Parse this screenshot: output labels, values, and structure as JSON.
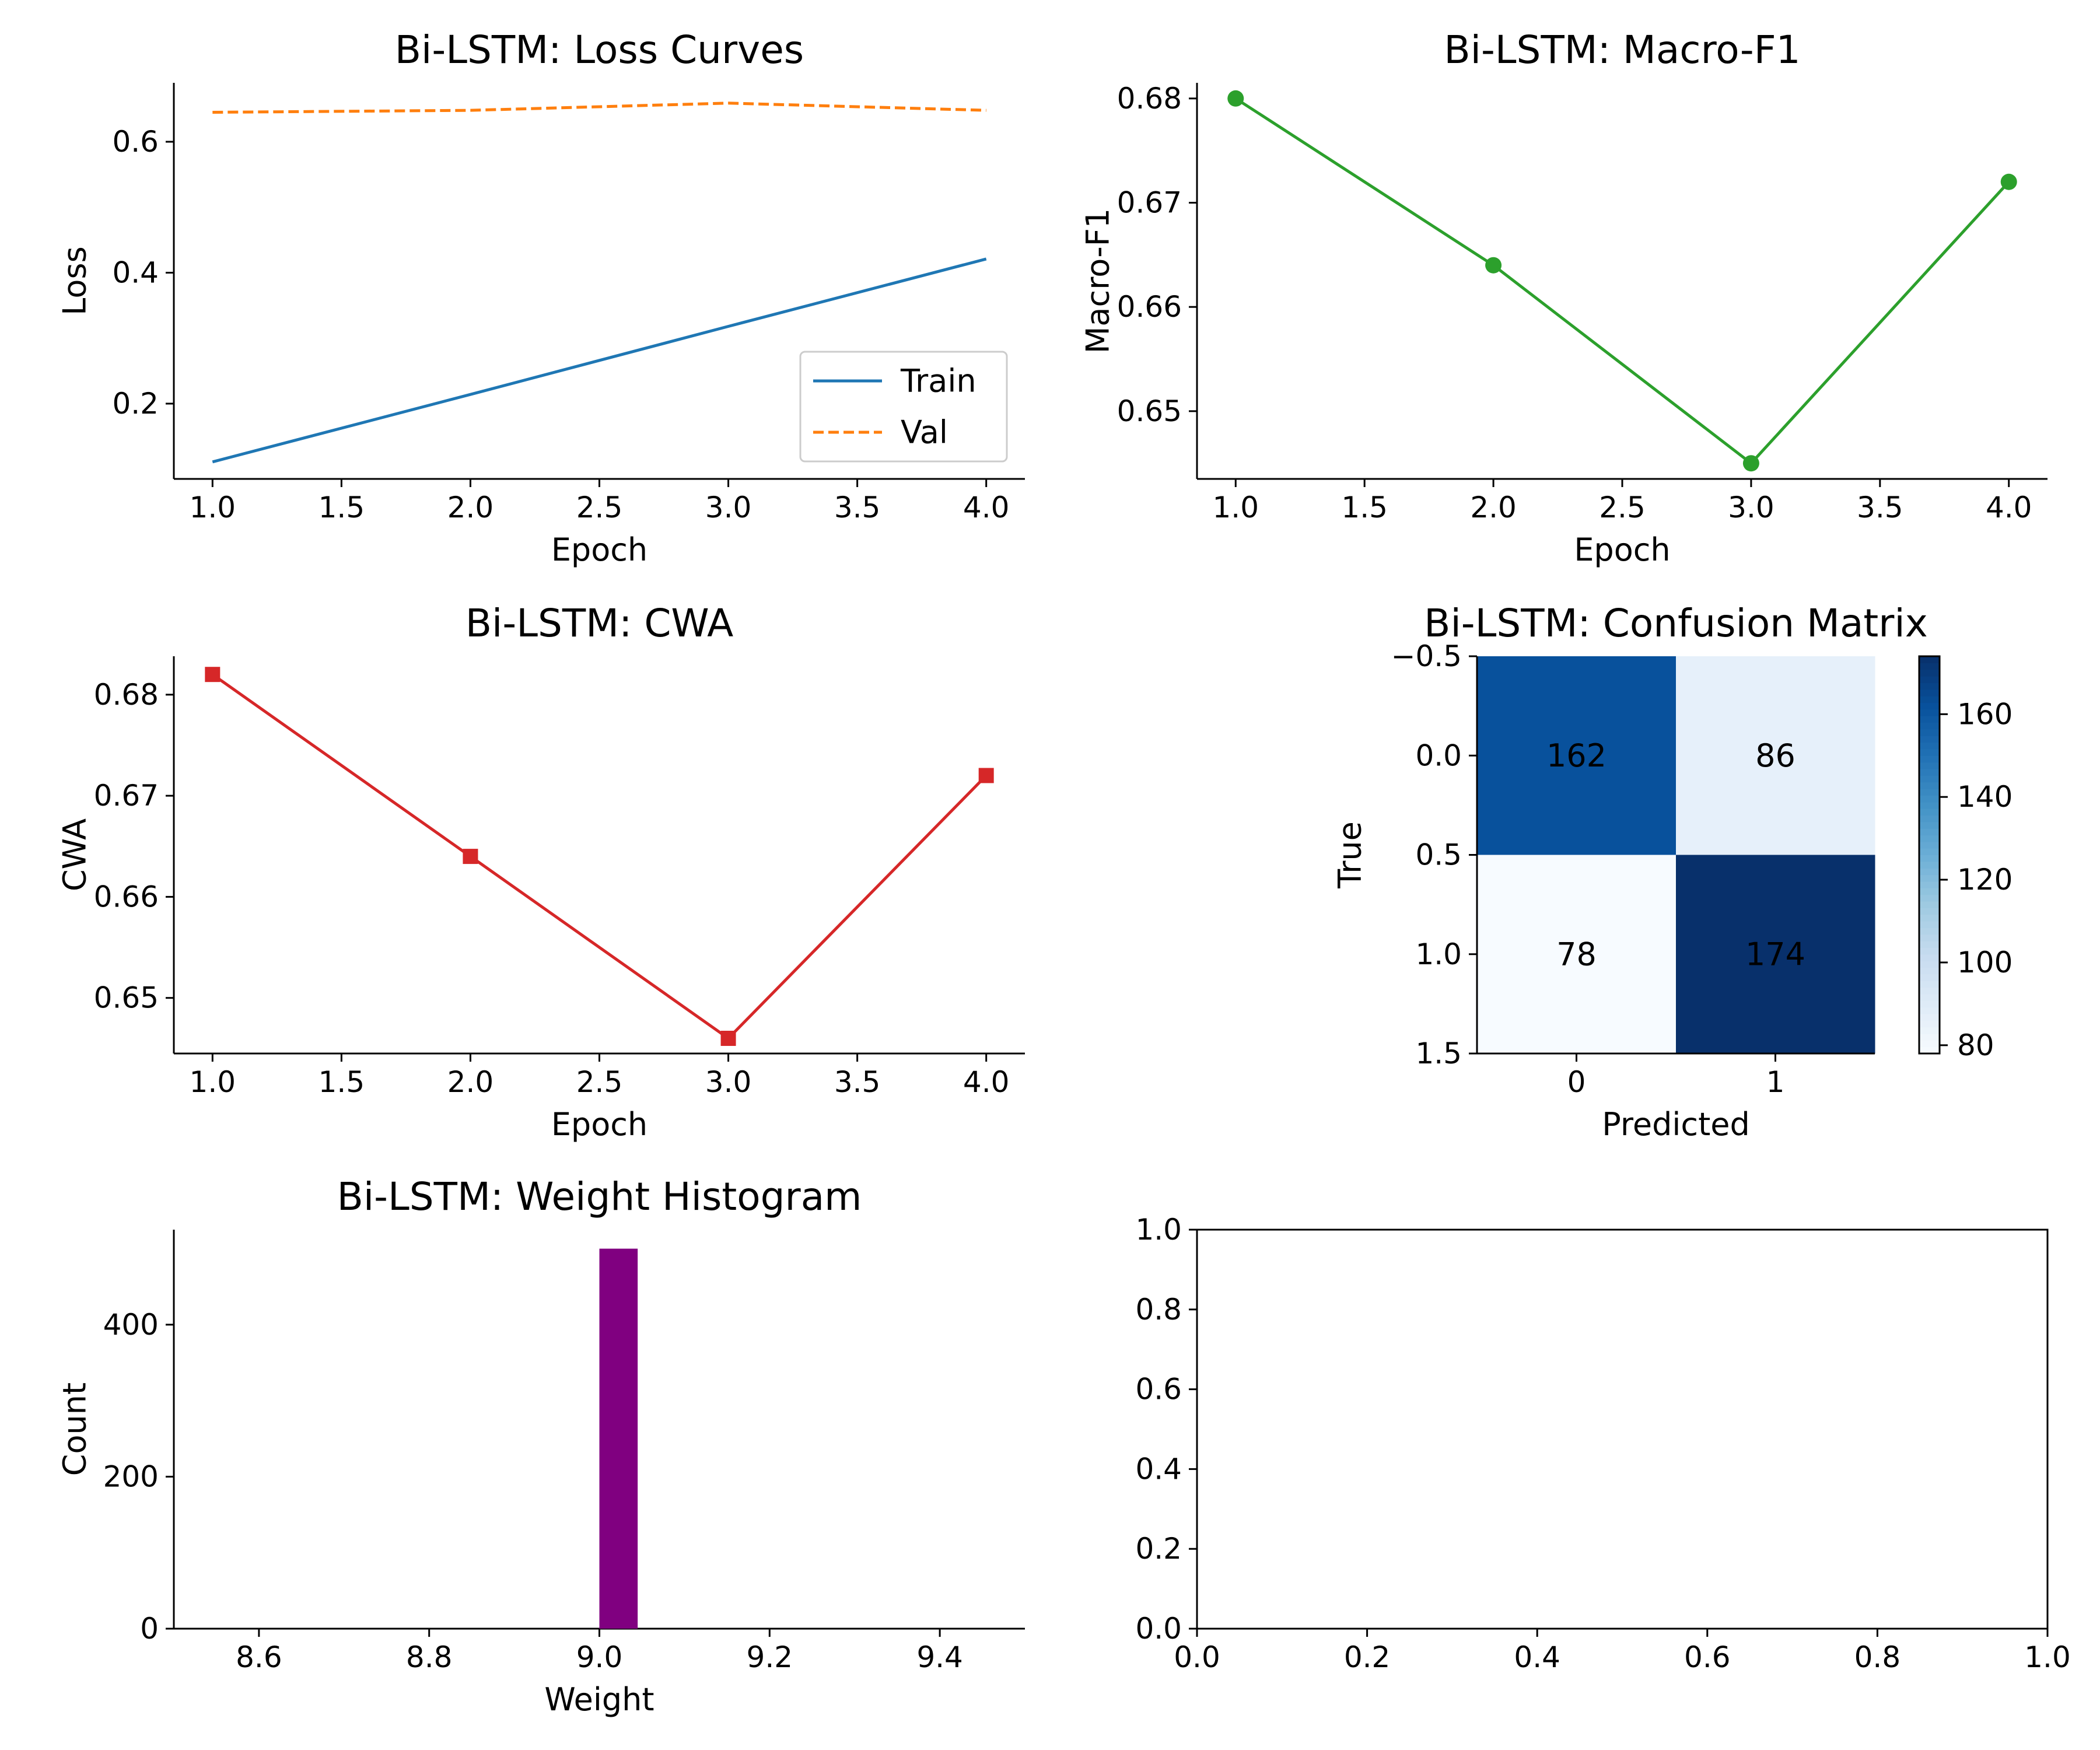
{
  "chart_data": [
    {
      "id": "loss",
      "type": "line",
      "title": "Bi-LSTM: Loss Curves",
      "xlabel": "Epoch",
      "ylabel": "Loss",
      "x": [
        1,
        2,
        3,
        4
      ],
      "xlim": [
        0.85,
        4.15
      ],
      "ylim": [
        0.085,
        0.69
      ],
      "xticks": [
        1.0,
        1.5,
        2.0,
        2.5,
        3.0,
        3.5,
        4.0
      ],
      "yticks": [
        0.2,
        0.4,
        0.6
      ],
      "tick_decimals": {
        "x": 1,
        "y": 1
      },
      "grid": false,
      "legend": "lower-right",
      "series": [
        {
          "name": "Train",
          "values": [
            0.111,
            0.214,
            0.318,
            0.421
          ],
          "color": "#1f77b4",
          "style": "solid",
          "marker": "none"
        },
        {
          "name": "Val",
          "values": [
            0.645,
            0.648,
            0.659,
            0.648
          ],
          "color": "#ff7f0e",
          "style": "dashed",
          "marker": "none"
        }
      ]
    },
    {
      "id": "f1",
      "type": "line",
      "title": "Bi-LSTM: Macro-F1",
      "xlabel": "Epoch",
      "ylabel": "Macro-F1",
      "x": [
        1,
        2,
        3,
        4
      ],
      "xlim": [
        0.85,
        4.15
      ],
      "ylim": [
        0.6435,
        0.6815
      ],
      "xticks": [
        1.0,
        1.5,
        2.0,
        2.5,
        3.0,
        3.5,
        4.0
      ],
      "yticks": [
        0.65,
        0.66,
        0.67,
        0.68
      ],
      "tick_decimals": {
        "x": 1,
        "y": 2
      },
      "grid": false,
      "series": [
        {
          "values": [
            0.68,
            0.664,
            0.645,
            0.672
          ],
          "color": "#2ca02c",
          "style": "solid",
          "marker": "circle"
        }
      ]
    },
    {
      "id": "cwa",
      "type": "line",
      "title": "Bi-LSTM: CWA",
      "xlabel": "Epoch",
      "ylabel": "CWA",
      "x": [
        1,
        2,
        3,
        4
      ],
      "xlim": [
        0.85,
        4.15
      ],
      "ylim": [
        0.6445,
        0.6838
      ],
      "xticks": [
        1.0,
        1.5,
        2.0,
        2.5,
        3.0,
        3.5,
        4.0
      ],
      "yticks": [
        0.65,
        0.66,
        0.67,
        0.68
      ],
      "tick_decimals": {
        "x": 1,
        "y": 2
      },
      "grid": false,
      "series": [
        {
          "values": [
            0.682,
            0.664,
            0.646,
            0.672
          ],
          "color": "#d62728",
          "style": "solid",
          "marker": "square"
        }
      ]
    },
    {
      "id": "cm",
      "type": "heatmap",
      "title": "Bi-LSTM: Confusion Matrix",
      "xlabel": "Predicted",
      "ylabel": "True",
      "xticks": [
        "0",
        "1"
      ],
      "yticks": [
        "−0.5",
        "0.0",
        "0.5",
        "1.0",
        "1.5"
      ],
      "matrix": [
        [
          162,
          86
        ],
        [
          78,
          174
        ]
      ],
      "colormap": "Blues",
      "cell_label_color": "#ff0000",
      "colorbar": {
        "min": 78,
        "max": 174,
        "ticks": [
          80,
          100,
          120,
          140,
          160
        ]
      }
    },
    {
      "id": "hist",
      "type": "bar",
      "title": "Bi-LSTM: Weight Histogram",
      "xlabel": "Weight",
      "ylabel": "Count",
      "xlim": [
        8.5,
        9.5
      ],
      "ylim": [
        0,
        525
      ],
      "xticks": [
        8.6,
        8.8,
        9.0,
        9.2,
        9.4
      ],
      "yticks": [
        0,
        200,
        400
      ],
      "tick_decimals": {
        "x": 1,
        "y": 0
      },
      "bins": [
        {
          "start": 9.0,
          "end": 9.045,
          "count": 500
        }
      ],
      "color": "#800080",
      "grid": false
    },
    {
      "id": "empty",
      "type": "line",
      "title": "",
      "xlabel": "",
      "ylabel": "",
      "xlim": [
        0,
        1
      ],
      "ylim": [
        0,
        1
      ],
      "xticks": [
        0.0,
        0.2,
        0.4,
        0.6,
        0.8,
        1.0
      ],
      "yticks": [
        0.0,
        0.2,
        0.4,
        0.6,
        0.8,
        1.0
      ],
      "tick_decimals": {
        "x": 1,
        "y": 1
      },
      "series": []
    }
  ]
}
